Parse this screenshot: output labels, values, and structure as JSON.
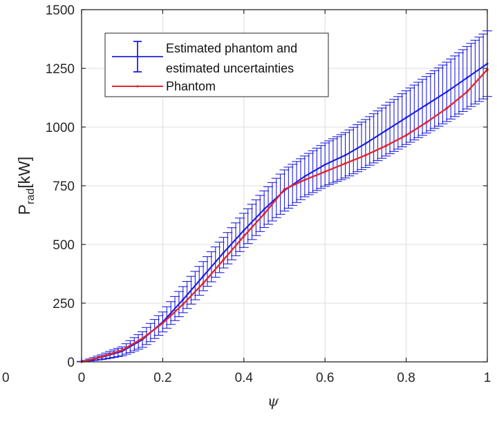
{
  "chart_data": {
    "type": "line",
    "xlabel": "ψ",
    "ylabel": {
      "main": "P",
      "sub": "rad",
      "unit": "[kW]"
    },
    "xlim": [
      0,
      1
    ],
    "ylim": [
      0,
      1500
    ],
    "xticks": [
      0,
      0.2,
      0.4,
      0.6,
      0.8,
      1
    ],
    "xtick_labels": [
      "0",
      "0.2",
      "0.4",
      "0.6",
      "0.8",
      "1"
    ],
    "yticks": [
      0,
      250,
      500,
      750,
      1000,
      1250,
      1500
    ],
    "ytick_labels": [
      "0",
      "250",
      "500",
      "750",
      "1000",
      "1250",
      "1500"
    ],
    "cut_left_label": "0",
    "grid": true,
    "legend_position": "top-left",
    "legend": {
      "estimated_line1": "Estimated phantom and",
      "estimated_line2": "estimated uncertainties",
      "phantom": "Phantom"
    },
    "series": [
      {
        "name": "Estimated phantom and estimated uncertainties",
        "color": "#1f1fe0",
        "style": "errorbar",
        "x": [
          0,
          0.05,
          0.1,
          0.15,
          0.2,
          0.25,
          0.3,
          0.35,
          0.4,
          0.45,
          0.5,
          0.55,
          0.6,
          0.65,
          0.7,
          0.75,
          0.8,
          0.85,
          0.9,
          0.95,
          1.0
        ],
        "y": [
          0,
          20,
          45,
          95,
          170,
          265,
          365,
          465,
          560,
          650,
          730,
          790,
          840,
          880,
          930,
          985,
          1040,
          1095,
          1150,
          1210,
          1270
        ],
        "err_fraction": [
          0.5,
          0.5,
          0.42,
          0.35,
          0.25,
          0.21,
          0.17,
          0.14,
          0.13,
          0.12,
          0.12,
          0.11,
          0.11,
          0.11,
          0.11,
          0.11,
          0.11,
          0.11,
          0.11,
          0.11,
          0.11
        ]
      },
      {
        "name": "Phantom",
        "color": "#e0262f",
        "style": "line",
        "x": [
          0,
          0.05,
          0.1,
          0.15,
          0.2,
          0.25,
          0.3,
          0.35,
          0.4,
          0.45,
          0.5,
          0.55,
          0.6,
          0.65,
          0.7,
          0.75,
          0.8,
          0.85,
          0.9,
          0.95,
          1.0
        ],
        "y": [
          0,
          22,
          50,
          100,
          165,
          245,
          335,
          435,
          535,
          630,
          735,
          775,
          810,
          845,
          880,
          920,
          965,
          1020,
          1080,
          1150,
          1245
        ]
      }
    ]
  },
  "colors": {
    "estimated": "#1f1fe0",
    "phantom": "#e0262f",
    "grid": "#dcdcdc",
    "axis": "#262626"
  }
}
